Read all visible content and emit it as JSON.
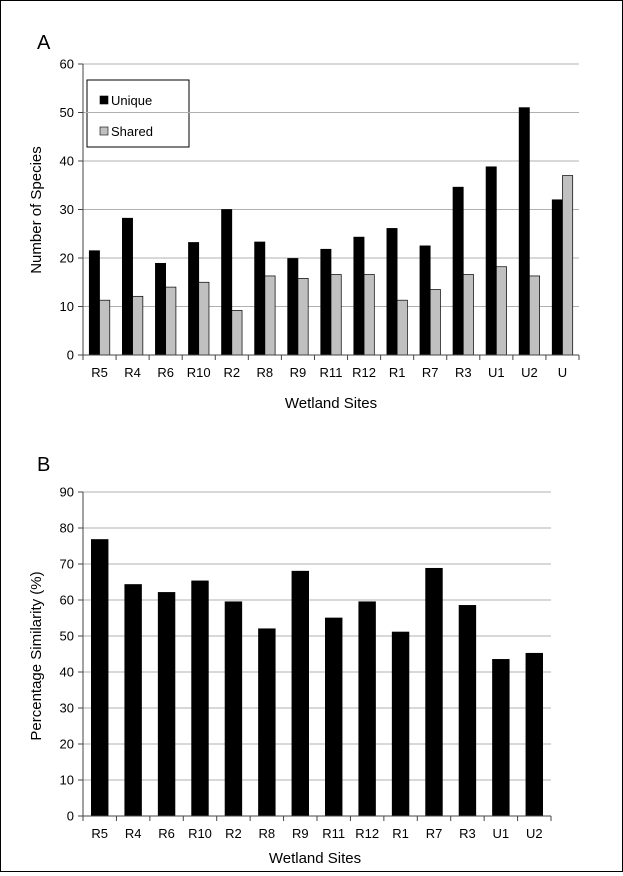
{
  "colors": {
    "unique": "#000000",
    "shared": "#c0c0c0",
    "grid": "#b0b0b0",
    "axis": "#444444"
  },
  "chart_data": [
    {
      "type": "bar",
      "panel_label": "A",
      "xlabel": "Wetland Sites",
      "ylabel": "Number of Species",
      "ylim": [
        0,
        60
      ],
      "yticks": [
        0,
        10,
        20,
        30,
        40,
        50,
        60
      ],
      "grid": true,
      "legend": "top-left",
      "categories": [
        "R5",
        "R4",
        "R6",
        "R10",
        "R2",
        "R8",
        "R9",
        "R11",
        "R12",
        "R1",
        "R7",
        "R3",
        "U1",
        "U2",
        "U"
      ],
      "series": [
        {
          "name": "Unique",
          "color": "#000000",
          "values": [
            21.5,
            28.2,
            18.9,
            23.2,
            30,
            23.3,
            19.9,
            21.8,
            24.3,
            26.1,
            22.5,
            34.6,
            38.8,
            51,
            32
          ]
        },
        {
          "name": "Shared",
          "color": "#c0c0c0",
          "values": [
            11.3,
            12.1,
            14,
            15,
            9.2,
            16.3,
            15.8,
            16.6,
            16.6,
            11.3,
            13.5,
            16.6,
            18.2,
            16.3,
            37
          ]
        }
      ]
    },
    {
      "type": "bar",
      "panel_label": "B",
      "xlabel": "Wetland Sites",
      "ylabel": "Percentage Similarity (%)",
      "ylim": [
        0,
        90
      ],
      "yticks": [
        0,
        10,
        20,
        30,
        40,
        50,
        60,
        70,
        80,
        90
      ],
      "grid": true,
      "categories": [
        "R5",
        "R4",
        "R6",
        "R10",
        "R2",
        "R8",
        "R9",
        "R11",
        "R12",
        "R1",
        "R7",
        "R3",
        "U1",
        "U2"
      ],
      "series": [
        {
          "color": "#000000",
          "values": [
            76.8,
            64.3,
            62.1,
            65.3,
            59.5,
            52,
            68,
            55,
            59.5,
            51.1,
            68.8,
            58.5,
            43.5,
            45.2
          ]
        }
      ]
    }
  ]
}
